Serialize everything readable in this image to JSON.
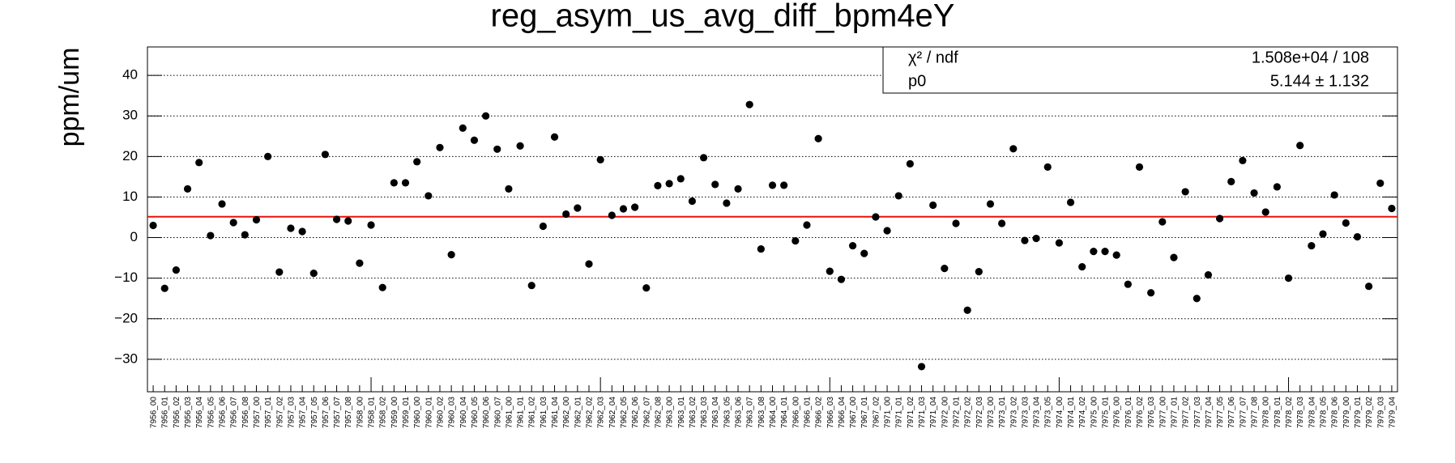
{
  "chart_data": {
    "type": "scatter",
    "title": "reg_asym_us_avg_diff_bpm4eY",
    "y_label": "ppm/um",
    "color": "#000000",
    "grid": true,
    "categories": [
      "7956_00",
      "7956_01",
      "7956_02",
      "7956_03",
      "7956_04",
      "7956_05",
      "7956_06",
      "7956_07",
      "7956_08",
      "7957_00",
      "7957_01",
      "7957_02",
      "7957_03",
      "7957_04",
      "7957_05",
      "7957_06",
      "7957_07",
      "7957_08",
      "7958_00",
      "7958_01",
      "7958_02",
      "7959_00",
      "7959_01",
      "7960_00",
      "7960_01",
      "7960_02",
      "7960_03",
      "7960_04",
      "7960_05",
      "7960_06",
      "7960_07",
      "7961_00",
      "7961_01",
      "7961_02",
      "7961_03",
      "7961_04",
      "7962_00",
      "7962_01",
      "7962_02",
      "7962_03",
      "7962_04",
      "7962_05",
      "7962_06",
      "7962_07",
      "7962_08",
      "7963_00",
      "7963_01",
      "7963_02",
      "7963_03",
      "7963_04",
      "7963_05",
      "7963_06",
      "7963_07",
      "7963_08",
      "7964_00",
      "7964_01",
      "7966_00",
      "7966_01",
      "7966_02",
      "7966_03",
      "7966_04",
      "7967_00",
      "7967_01",
      "7967_02",
      "7971_00",
      "7971_01",
      "7971_02",
      "7971_03",
      "7971_04",
      "7972_00",
      "7972_01",
      "7972_02",
      "7972_03",
      "7973_00",
      "7973_01",
      "7973_02",
      "7973_03",
      "7973_04",
      "7973_05",
      "7974_00",
      "7974_01",
      "7974_02",
      "7975_00",
      "7975_01",
      "7976_00",
      "7976_01",
      "7976_02",
      "7976_03",
      "7977_00",
      "7977_01",
      "7977_02",
      "7977_03",
      "7977_04",
      "7977_05",
      "7977_06",
      "7977_07",
      "7977_08",
      "7978_00",
      "7978_01",
      "7978_02",
      "7978_03",
      "7978_04",
      "7978_05",
      "7978_06",
      "7979_00",
      "7979_01",
      "7979_02",
      "7979_03",
      "7979_04"
    ],
    "values": [
      3,
      -12.5,
      -8,
      12,
      18.5,
      0.5,
      8.3,
      3.7,
      0.7,
      4.4,
      20,
      -8.5,
      2.3,
      1.5,
      -8.8,
      20.5,
      4.5,
      4.1,
      -6.3,
      3.1,
      -12.3,
      13.5,
      13.5,
      18.7,
      10.3,
      22.2,
      -4.2,
      27,
      24,
      30,
      21.8,
      12,
      22.6,
      -11.8,
      2.8,
      24.8,
      5.8,
      7.3,
      -6.5,
      19.2,
      5.5,
      7.1,
      7.5,
      -12.4,
      12.8,
      13.3,
      14.5,
      9,
      19.7,
      13.1,
      8.5,
      12,
      32.8,
      -2.8,
      12.9,
      12.9,
      -0.8,
      3.1,
      24.4,
      -8.3,
      -10.3,
      -2,
      -3.9,
      5.1,
      1.7,
      10.3,
      18.2,
      -31.8,
      8,
      -7.6,
      3.5,
      -17.9,
      -8.4,
      8.3,
      3.5,
      21.9,
      -0.7,
      -0.2,
      17.4,
      -1.3,
      8.7,
      -7.2,
      -3.4,
      -3.4,
      -4.3,
      -11.5,
      17.4,
      -13.6,
      3.9,
      -4.9,
      11.3,
      -15,
      -9.2,
      4.7,
      13.8,
      19,
      11,
      6.3,
      12.5,
      -10,
      22.7,
      -2,
      0.9,
      10.5,
      3.6,
      0.2,
      -12,
      13.4,
      7.2
    ],
    "ylim": [
      -38,
      47
    ],
    "yticks": [
      {
        "value": -30,
        "label": "−30"
      },
      {
        "value": -20,
        "label": "−20"
      },
      {
        "value": -10,
        "label": "−10"
      },
      0,
      10,
      20,
      30,
      40
    ],
    "fit": {
      "color": "#e8120c",
      "p0": 5.144
    },
    "stats": [
      {
        "label": "χ² / ndf",
        "value": "1.508e+04 / 108"
      },
      {
        "label": "p0",
        "value": "5.144 ± 1.132"
      }
    ]
  }
}
